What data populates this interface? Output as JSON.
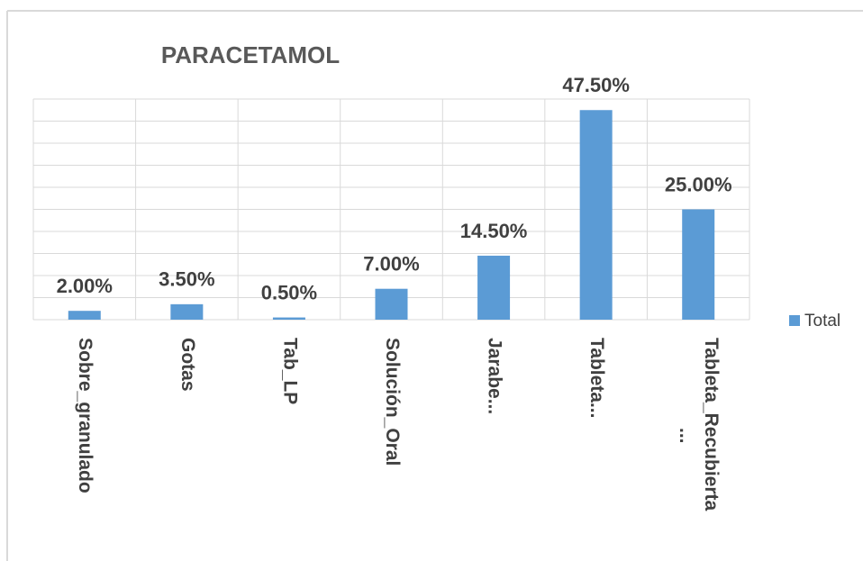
{
  "chart_data": {
    "type": "bar",
    "title": "PARACETAMOL",
    "categories": [
      "Sobre_granulado",
      "Gotas",
      "Tab_LP",
      "Solución_Oral",
      "Jarabe...",
      "Tableta...",
      "Tableta_Recubierta ..."
    ],
    "series": [
      {
        "name": "Total",
        "color": "#5b9bd5",
        "values": [
          2,
          3.5,
          0.5,
          7,
          14.5,
          47.5,
          25
        ],
        "value_labels": [
          "2.00%",
          "3.50%",
          "0.50%",
          "7.00%",
          "14.50%",
          "47.50%",
          "25.00%"
        ]
      }
    ],
    "ylim": [
      0,
      50
    ],
    "yticks": [
      0,
      5,
      10,
      15,
      20,
      25,
      30,
      35,
      40,
      45,
      50
    ],
    "grid": true,
    "legend": "right"
  }
}
